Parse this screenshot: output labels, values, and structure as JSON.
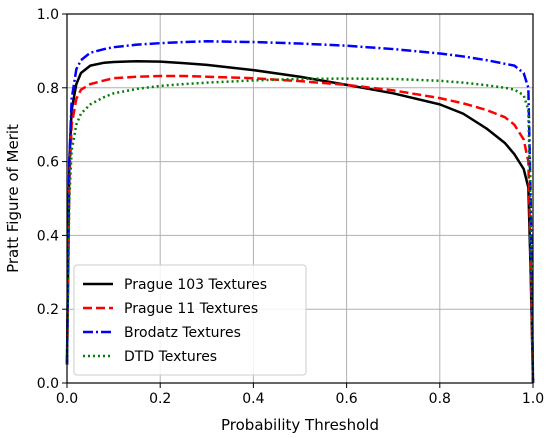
{
  "chart_data": {
    "type": "line",
    "title": "",
    "xlabel": "Probability Threshold",
    "ylabel": "Pratt Figure of Merit",
    "xlim": [
      0.0,
      1.0
    ],
    "ylim": [
      0.0,
      1.0
    ],
    "xticks": [
      "0.0",
      "0.2",
      "0.4",
      "0.6",
      "0.8",
      "1.0"
    ],
    "yticks": [
      "0.0",
      "0.2",
      "0.4",
      "0.6",
      "0.8",
      "1.0"
    ],
    "grid": true,
    "legend_position": "lower-left",
    "series": [
      {
        "name": "Prague 103 Textures",
        "color": "#000000",
        "style": "solid",
        "x": [
          0.0,
          0.005,
          0.01,
          0.02,
          0.03,
          0.05,
          0.08,
          0.1,
          0.15,
          0.2,
          0.25,
          0.3,
          0.4,
          0.5,
          0.6,
          0.7,
          0.8,
          0.85,
          0.9,
          0.94,
          0.96,
          0.98,
          0.99,
          0.995,
          1.0
        ],
        "y": [
          0.05,
          0.6,
          0.74,
          0.81,
          0.84,
          0.86,
          0.868,
          0.87,
          0.872,
          0.871,
          0.867,
          0.862,
          0.848,
          0.83,
          0.808,
          0.785,
          0.755,
          0.73,
          0.69,
          0.65,
          0.62,
          0.58,
          0.53,
          0.3,
          0.0
        ]
      },
      {
        "name": "Prague 11 Textures",
        "color": "#ff0000",
        "style": "dashed",
        "x": [
          0.0,
          0.005,
          0.01,
          0.02,
          0.03,
          0.05,
          0.08,
          0.1,
          0.15,
          0.2,
          0.25,
          0.3,
          0.4,
          0.5,
          0.6,
          0.7,
          0.8,
          0.85,
          0.9,
          0.94,
          0.96,
          0.98,
          0.99,
          0.995,
          1.0
        ],
        "y": [
          0.05,
          0.55,
          0.7,
          0.77,
          0.795,
          0.81,
          0.82,
          0.826,
          0.83,
          0.832,
          0.832,
          0.83,
          0.826,
          0.818,
          0.808,
          0.793,
          0.772,
          0.758,
          0.74,
          0.72,
          0.7,
          0.66,
          0.6,
          0.35,
          0.0
        ]
      },
      {
        "name": "Brodatz Textures",
        "color": "#0000ff",
        "style": "dashdot",
        "x": [
          0.0,
          0.005,
          0.01,
          0.02,
          0.03,
          0.05,
          0.08,
          0.1,
          0.15,
          0.2,
          0.25,
          0.3,
          0.4,
          0.5,
          0.6,
          0.7,
          0.8,
          0.85,
          0.9,
          0.94,
          0.96,
          0.98,
          0.99,
          0.995,
          1.0
        ],
        "y": [
          0.05,
          0.6,
          0.77,
          0.85,
          0.875,
          0.895,
          0.905,
          0.91,
          0.917,
          0.921,
          0.924,
          0.926,
          0.924,
          0.92,
          0.914,
          0.905,
          0.893,
          0.885,
          0.875,
          0.865,
          0.86,
          0.84,
          0.8,
          0.5,
          0.0
        ]
      },
      {
        "name": "DTD Textures",
        "color": "#008000",
        "style": "dotted",
        "x": [
          0.0,
          0.005,
          0.01,
          0.02,
          0.03,
          0.05,
          0.08,
          0.1,
          0.15,
          0.2,
          0.25,
          0.3,
          0.4,
          0.5,
          0.6,
          0.7,
          0.8,
          0.85,
          0.9,
          0.94,
          0.96,
          0.98,
          0.99,
          0.995,
          1.0
        ],
        "y": [
          0.05,
          0.5,
          0.63,
          0.7,
          0.73,
          0.755,
          0.775,
          0.785,
          0.797,
          0.805,
          0.81,
          0.814,
          0.82,
          0.824,
          0.825,
          0.824,
          0.819,
          0.814,
          0.807,
          0.8,
          0.795,
          0.78,
          0.74,
          0.45,
          0.0
        ]
      }
    ]
  }
}
